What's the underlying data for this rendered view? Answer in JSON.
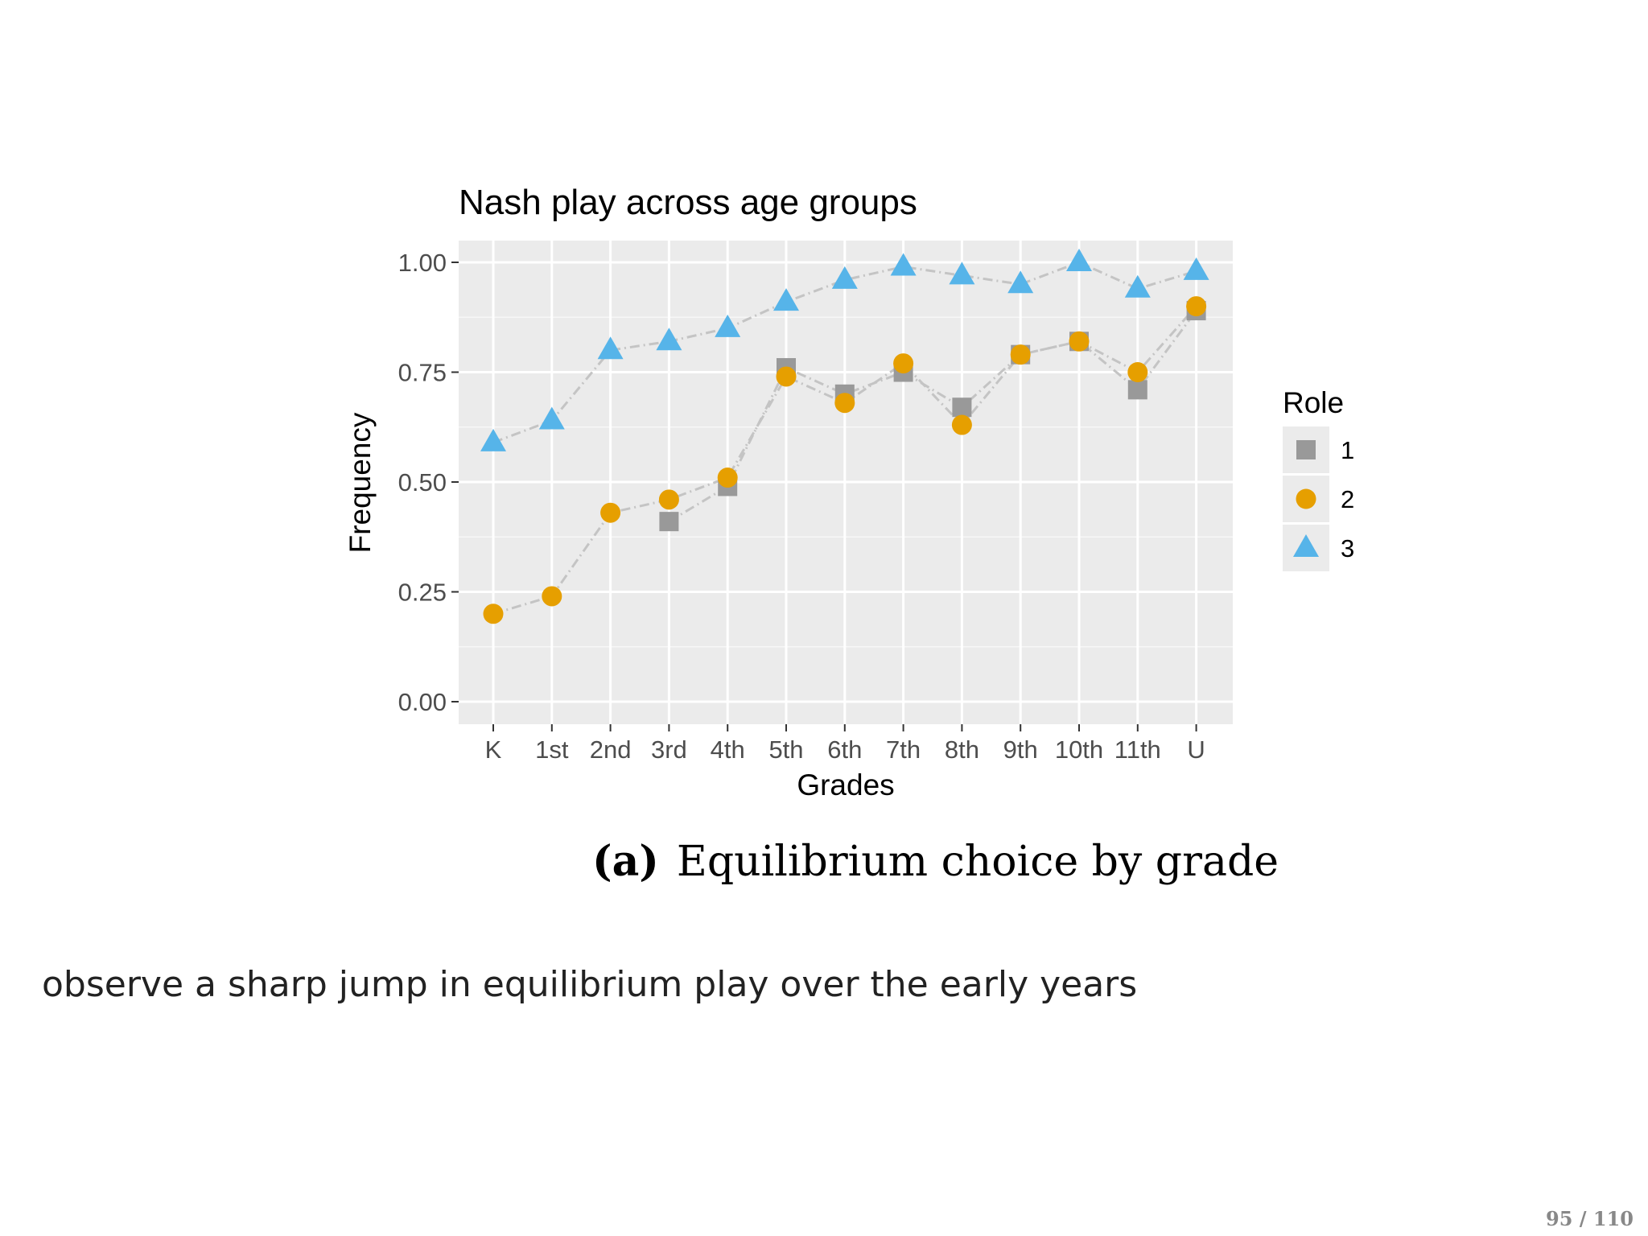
{
  "chart_data": {
    "type": "scatter",
    "title": "Nash play across age groups",
    "xlabel": "Grades",
    "ylabel": "Frequency",
    "categories": [
      "K",
      "1st",
      "2nd",
      "3rd",
      "4th",
      "5th",
      "6th",
      "7th",
      "8th",
      "9th",
      "10th",
      "11th",
      "U"
    ],
    "ylim": [
      0,
      1
    ],
    "yticks": [
      "0.00",
      "0.25",
      "0.50",
      "0.75",
      "1.00"
    ],
    "grid": true,
    "legend_title": "Role",
    "legend_position": "right",
    "series": [
      {
        "name": "1",
        "marker": "square",
        "color": "#999999",
        "values": [
          null,
          null,
          null,
          0.41,
          0.49,
          0.76,
          0.7,
          0.75,
          0.67,
          0.79,
          0.82,
          0.71,
          0.89
        ]
      },
      {
        "name": "2",
        "marker": "circle",
        "color": "#E69F00",
        "values": [
          0.2,
          0.24,
          0.43,
          0.46,
          0.51,
          0.74,
          0.68,
          0.77,
          0.63,
          0.79,
          0.82,
          0.75,
          0.9
        ]
      },
      {
        "name": "3",
        "marker": "triangle",
        "color": "#56B4E9",
        "values": [
          0.59,
          0.64,
          0.8,
          0.82,
          0.85,
          0.91,
          0.96,
          0.99,
          0.97,
          0.95,
          1.0,
          0.94,
          0.98
        ]
      }
    ]
  },
  "caption": {
    "tag": "(a)",
    "text": "Equilibrium choice by grade"
  },
  "note": "observe a sharp jump in equilibrium play over the early years",
  "page_number": "95 / 110"
}
